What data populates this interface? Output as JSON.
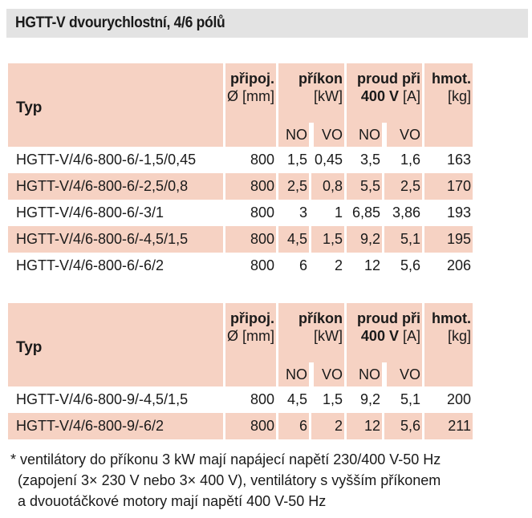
{
  "title": "HGTT-V dvourychlostní, 4/6 pólů",
  "header": {
    "typ": "Typ",
    "pripoj_label": "připoj.",
    "pripoj_unit": "Ø [mm]",
    "prikon_label": "příkon",
    "prikon_unit": "[kW]",
    "proud_label": "proud při",
    "proud_voltage": "400 V",
    "proud_unit": "[A]",
    "hmot_label": "hmot.",
    "hmot_unit": "[kg]",
    "no": "NO",
    "vo": "VO"
  },
  "table1": {
    "rows": [
      {
        "typ": "HGTT-V/4/6-800-6/-1,5/0,45",
        "pripoj": "800",
        "prikon_no": "1,5",
        "prikon_vo": "0,45",
        "proud_no": "3,5",
        "proud_vo": "1,6",
        "hmot": "163"
      },
      {
        "typ": "HGTT-V/4/6-800-6/-2,5/0,8",
        "pripoj": "800",
        "prikon_no": "2,5",
        "prikon_vo": "0,8",
        "proud_no": "5,5",
        "proud_vo": "2,5",
        "hmot": "170"
      },
      {
        "typ": "HGTT-V/4/6-800-6/-3/1",
        "pripoj": "800",
        "prikon_no": "3",
        "prikon_vo": "1",
        "proud_no": "6,85",
        "proud_vo": "3,86",
        "hmot": "193"
      },
      {
        "typ": "HGTT-V/4/6-800-6/-4,5/1,5",
        "pripoj": "800",
        "prikon_no": "4,5",
        "prikon_vo": "1,5",
        "proud_no": "9,2",
        "proud_vo": "5,1",
        "hmot": "195"
      },
      {
        "typ": "HGTT-V/4/6-800-6/-6/2",
        "pripoj": "800",
        "prikon_no": "6",
        "prikon_vo": "2",
        "proud_no": "12",
        "proud_vo": "5,6",
        "hmot": "206"
      }
    ]
  },
  "table2": {
    "rows": [
      {
        "typ": "HGTT-V/4/6-800-9/-4,5/1,5",
        "pripoj": "800",
        "prikon_no": "4,5",
        "prikon_vo": "1,5",
        "proud_no": "9,2",
        "proud_vo": "5,1",
        "hmot": "200"
      },
      {
        "typ": "HGTT-V/4/6-800-9/-6/2",
        "pripoj": "800",
        "prikon_no": "6",
        "prikon_vo": "2",
        "proud_no": "12",
        "proud_vo": "5,6",
        "hmot": "211"
      }
    ]
  },
  "footnote": {
    "line1": "* ventilátory do příkonu 3 kW mají napájecí napětí 230/400 V-50 Hz",
    "line2": "(zapojení 3× 230 V nebo 3× 400 V), ventilátory s vyšším příkonem",
    "line3": "a dvouotáčkové motory mají napětí 400 V-50 Hz"
  },
  "colors": {
    "header_bg": "#f6d2c3",
    "title_bg": "#e3e3e3",
    "text": "#1a1a1a"
  }
}
